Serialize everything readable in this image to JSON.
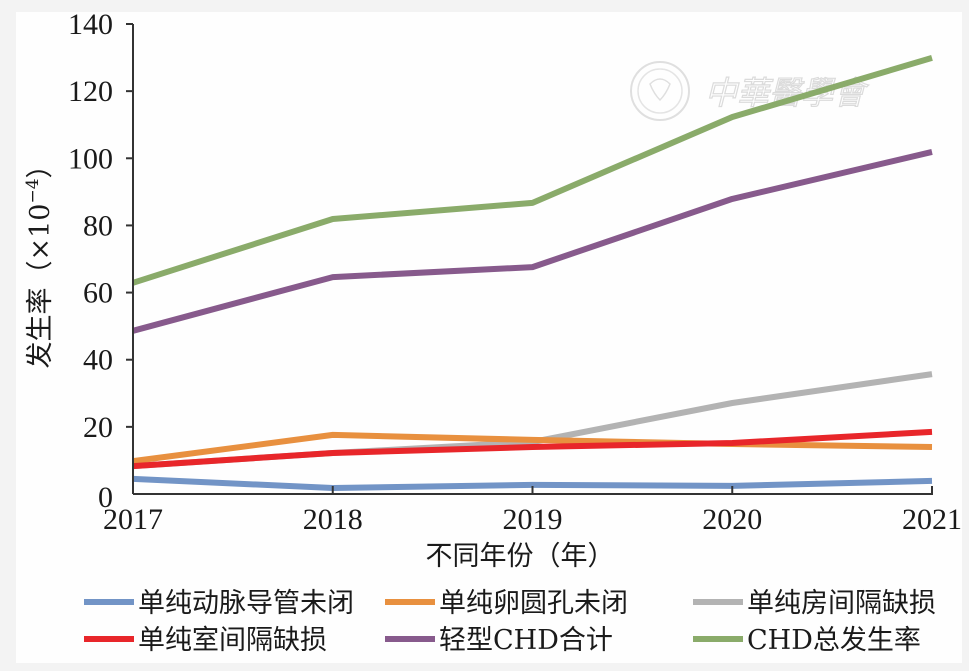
{
  "chart_data": {
    "type": "line",
    "title": "",
    "xlabel": "不同年份（年）",
    "ylabel": "发生率（×10",
    "ylabel_exponent": "−4",
    "ylabel_close": "）",
    "x": [
      "2017",
      "2018",
      "2019",
      "2020",
      "2021"
    ],
    "ylim": [
      0,
      140
    ],
    "yticks": [
      0,
      20,
      40,
      60,
      80,
      100,
      120,
      140
    ],
    "grid": false,
    "legend_position": "bottom",
    "series": [
      {
        "name": "单纯动脉导管未闭",
        "color": "#7294c6",
        "values": [
          4.5,
          1.8,
          2.7,
          2.4,
          3.9
        ]
      },
      {
        "name": "单纯卵圆孔未闭",
        "color": "#e8903f",
        "values": [
          9.8,
          17.6,
          16.1,
          14.9,
          14.0
        ]
      },
      {
        "name": "单纯房间隔缺损",
        "color": "#b3b3b3",
        "values": [
          8.3,
          12.2,
          15.5,
          27.1,
          35.7
        ]
      },
      {
        "name": "单纯室间隔缺损",
        "color": "#e8262a",
        "values": [
          8.3,
          12.2,
          14.0,
          15.2,
          18.5
        ]
      },
      {
        "name": "轻型CHD合计",
        "color": "#875a8c",
        "values": [
          48.6,
          64.6,
          67.6,
          87.9,
          101.9
        ]
      },
      {
        "name": "CHD总发生率",
        "color": "#8aab6a",
        "values": [
          62.9,
          81.9,
          86.7,
          112.3,
          129.9
        ]
      }
    ]
  },
  "watermark": {
    "text": "中華醫學會"
  }
}
